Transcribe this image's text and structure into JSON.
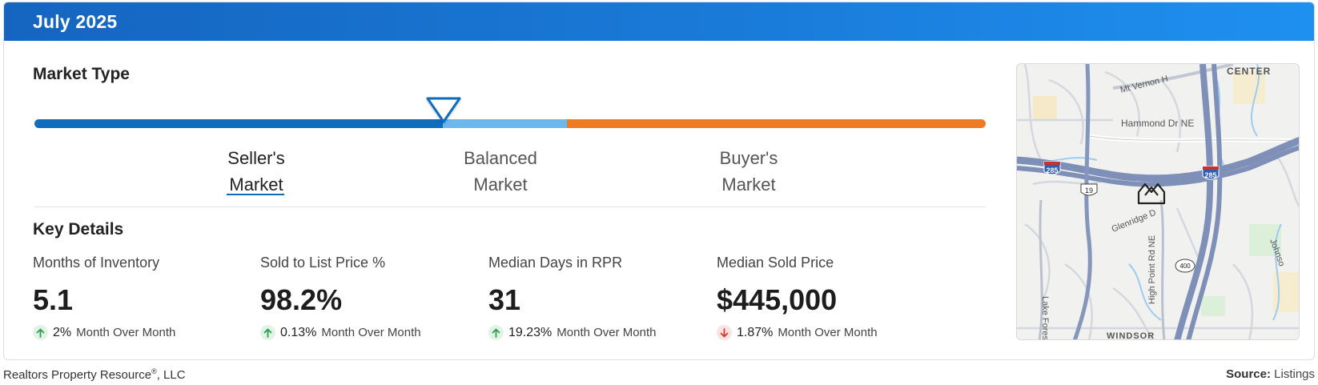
{
  "header": {
    "title": "July 2025"
  },
  "market_type": {
    "title": "Market Type",
    "segments": [
      {
        "line1": "Seller's",
        "line2": "Market",
        "color": "#0f6dbd",
        "active": true
      },
      {
        "line1": "Balanced",
        "line2": "Market",
        "color": "#6ab8ee",
        "active": false
      },
      {
        "line1": "Buyer's",
        "line2": "Market",
        "color": "#ee7a22",
        "active": false
      }
    ]
  },
  "key_details": {
    "title": "Key Details",
    "metrics": [
      {
        "label": "Months of Inventory",
        "value": "5.1",
        "direction": "up",
        "change": "2%",
        "period": "Month Over Month"
      },
      {
        "label": "Sold to List Price %",
        "value": "98.2%",
        "direction": "up",
        "change": "0.13%",
        "period": "Month Over Month"
      },
      {
        "label": "Median Days in RPR",
        "value": "31",
        "direction": "up",
        "change": "19.23%",
        "period": "Month Over Month"
      },
      {
        "label": "Median Sold Price",
        "value": "$445,000",
        "direction": "down",
        "change": "1.87%",
        "period": "Month Over Month"
      }
    ]
  },
  "map": {
    "labels": {
      "center": "CENTER",
      "mt_vernon": "Mt Vernon H",
      "hammond": "Hammond Dr NE",
      "i285_left": "285",
      "i285_right": "285",
      "us19": "19",
      "glenridge": "Glenridge D",
      "lake_forest": "Lake Forest Dr NW",
      "high_point": "High Point Rd NE",
      "ga400": "400",
      "johnson": "Johnso",
      "windsor": "WINDSOR"
    },
    "home_icon": "home-marker-icon"
  },
  "footer": {
    "company": "Realtors Property Resource",
    "registered": "®",
    "company_suffix": ", LLC",
    "source_label": "Source:",
    "source_value": "Listings"
  },
  "colors": {
    "up": "#2e9e4f",
    "down": "#d93a30",
    "header": "#1a7ad8"
  }
}
